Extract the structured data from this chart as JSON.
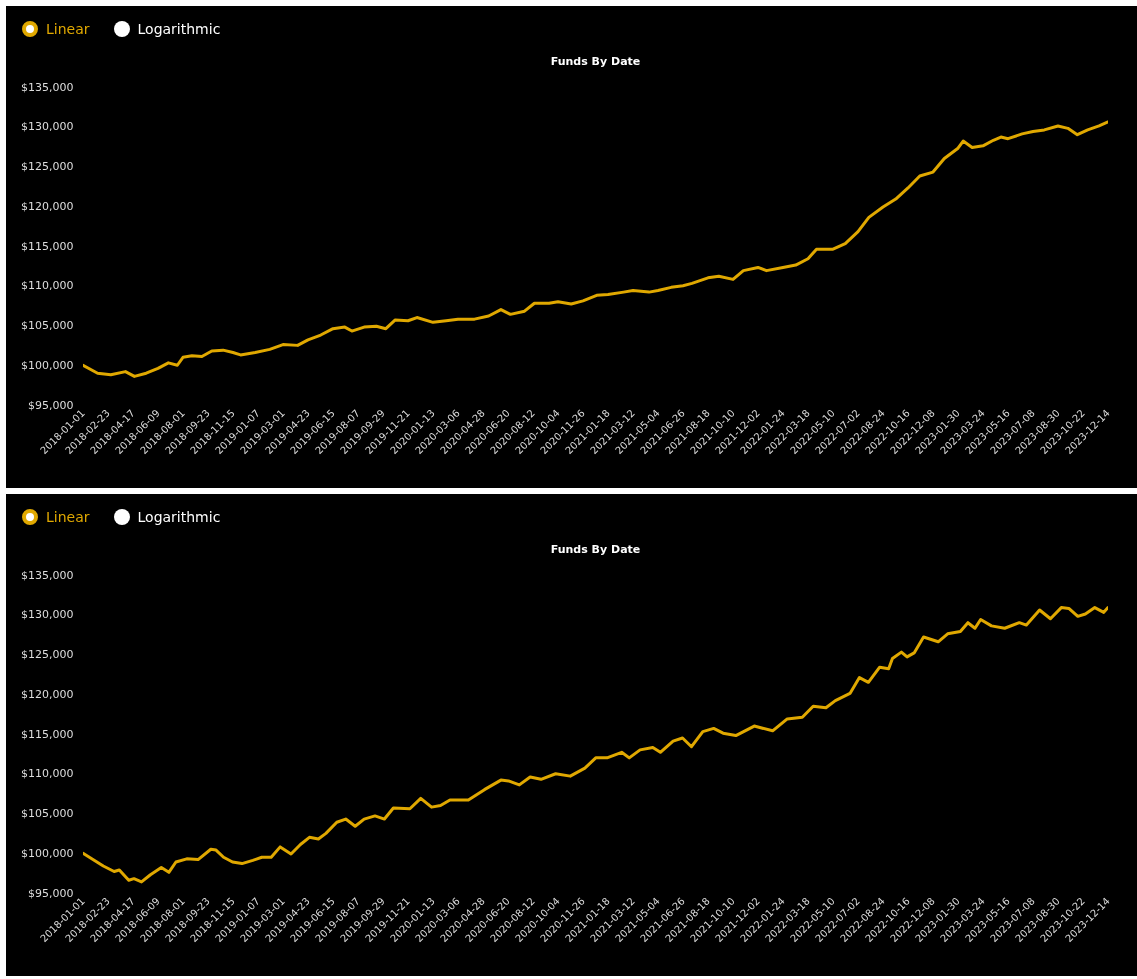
{
  "chart_data": [
    {
      "type": "line",
      "title": "Funds By Date",
      "annotations": [
        "Linear",
        "Logarithmic"
      ],
      "grid": false,
      "x": [
        "2018-01-01",
        "2018-02-01",
        "2018-03-01",
        "2018-04-01",
        "2018-04-20",
        "2018-05-15",
        "2018-06-09",
        "2018-07-01",
        "2018-07-20",
        "2018-08-01",
        "2018-08-20",
        "2018-09-10",
        "2018-10-01",
        "2018-10-25",
        "2018-11-15",
        "2018-12-01",
        "2019-01-01",
        "2019-02-01",
        "2019-03-01",
        "2019-04-01",
        "2019-04-23",
        "2019-05-20",
        "2019-06-15",
        "2019-07-10",
        "2019-07-25",
        "2019-08-20",
        "2019-09-15",
        "2019-10-05",
        "2019-10-25",
        "2019-11-21",
        "2019-12-10",
        "2020-01-13",
        "2020-02-10",
        "2020-03-06",
        "2020-04-10",
        "2020-05-10",
        "2020-06-05",
        "2020-06-25",
        "2020-07-25",
        "2020-08-15",
        "2020-09-15",
        "2020-10-04",
        "2020-11-01",
        "2020-11-26",
        "2020-12-25",
        "2021-01-18",
        "2021-02-20",
        "2021-03-12",
        "2021-04-15",
        "2021-05-04",
        "2021-06-01",
        "2021-06-26",
        "2021-07-15",
        "2021-08-18",
        "2021-09-10",
        "2021-10-10",
        "2021-11-01",
        "2021-12-02",
        "2021-12-20",
        "2022-01-24",
        "2022-02-20",
        "2022-03-18",
        "2022-04-05",
        "2022-05-10",
        "2022-06-05",
        "2022-07-02",
        "2022-07-25",
        "2022-08-24",
        "2022-09-20",
        "2022-10-16",
        "2022-11-10",
        "2022-12-08",
        "2023-01-01",
        "2023-01-30",
        "2023-02-10",
        "2023-03-01",
        "2023-03-24",
        "2023-04-15",
        "2023-05-01",
        "2023-05-16",
        "2023-06-15",
        "2023-07-08",
        "2023-08-01",
        "2023-08-30",
        "2023-09-20",
        "2023-10-10",
        "2023-11-01",
        "2023-11-25",
        "2023-12-14"
      ],
      "series": [
        {
          "color": "#e0a800",
          "values": [
            100000,
            99000,
            98800,
            99200,
            98600,
            99000,
            99600,
            100300,
            100000,
            101000,
            101200,
            101100,
            101800,
            101900,
            101600,
            101300,
            101600,
            102000,
            102600,
            102500,
            103200,
            103800,
            104600,
            104800,
            104300,
            104800,
            104900,
            104600,
            105700,
            105600,
            106000,
            105400,
            105600,
            105800,
            105800,
            106200,
            107000,
            106400,
            106800,
            107800,
            107800,
            108000,
            107700,
            108100,
            108800,
            108900,
            109200,
            109400,
            109200,
            109400,
            109800,
            110000,
            110300,
            111000,
            111200,
            110800,
            111900,
            112300,
            111900,
            112300,
            112600,
            113400,
            114600,
            114600,
            115300,
            116800,
            118600,
            119900,
            120900,
            122300,
            123800,
            124300,
            126000,
            127300,
            128200,
            127400,
            127600,
            128300,
            128700,
            128500,
            129100,
            129400,
            129600,
            130100,
            129800,
            129000,
            129600,
            130100,
            130600
          ]
        }
      ],
      "xlim": [
        "2018-01-01",
        "2023-12-14"
      ],
      "xticks": [
        "2018-01-01",
        "2018-02-23",
        "2018-04-17",
        "2018-06-09",
        "2018-08-01",
        "2018-09-23",
        "2018-11-15",
        "2019-01-07",
        "2019-03-01",
        "2019-04-23",
        "2019-06-15",
        "2019-08-07",
        "2019-09-29",
        "2019-11-21",
        "2020-01-13",
        "2020-03-06",
        "2020-04-28",
        "2020-06-20",
        "2020-08-12",
        "2020-10-04",
        "2020-11-26",
        "2021-01-18",
        "2021-03-12",
        "2021-05-04",
        "2021-06-26",
        "2021-08-18",
        "2021-10-10",
        "2021-12-02",
        "2022-01-24",
        "2022-03-18",
        "2022-05-10",
        "2022-07-02",
        "2022-08-24",
        "2022-10-16",
        "2022-12-08",
        "2023-01-30",
        "2023-03-24",
        "2023-05-16",
        "2023-07-08",
        "2023-08-30",
        "2023-10-22",
        "2023-12-14"
      ],
      "ylim": [
        95000,
        135000
      ],
      "yticks": [
        {
          "value": 95000,
          "label": "$95,000"
        },
        {
          "value": 100000,
          "label": "$100,000"
        },
        {
          "value": 105000,
          "label": "$105,000"
        },
        {
          "value": 110000,
          "label": "$110,000"
        },
        {
          "value": 115000,
          "label": "$115,000"
        },
        {
          "value": 120000,
          "label": "$120,000"
        },
        {
          "value": 125000,
          "label": "$125,000"
        },
        {
          "value": 130000,
          "label": "$130,000"
        },
        {
          "value": 135000,
          "label": "$135,000"
        }
      ]
    },
    {
      "type": "line",
      "title": "Funds By Date",
      "annotations": [
        "Linear",
        "Logarithmic"
      ],
      "grid": false,
      "x": [
        "2018-01-01",
        "2018-02-13",
        "2018-03-08",
        "2018-03-19",
        "2018-04-08",
        "2018-04-19",
        "2018-05-05",
        "2018-05-24",
        "2018-06-16",
        "2018-07-02",
        "2018-07-17",
        "2018-08-09",
        "2018-09-02",
        "2018-09-29",
        "2018-10-10",
        "2018-10-26",
        "2018-11-14",
        "2018-12-04",
        "2018-12-27",
        "2019-01-15",
        "2019-02-04",
        "2019-02-23",
        "2019-03-18",
        "2019-04-07",
        "2019-04-26",
        "2019-05-15",
        "2019-05-31",
        "2019-06-23",
        "2019-07-12",
        "2019-08-01",
        "2019-08-20",
        "2019-09-12",
        "2019-10-02",
        "2019-10-21",
        "2019-11-25",
        "2019-12-18",
        "2020-01-10",
        "2020-01-29",
        "2020-02-18",
        "2020-03-28",
        "2020-05-01",
        "2020-06-05",
        "2020-06-21",
        "2020-07-14",
        "2020-08-06",
        "2020-08-29",
        "2020-09-29",
        "2020-10-30",
        "2020-11-30",
        "2020-12-23",
        "2021-01-16",
        "2021-02-16",
        "2021-03-04",
        "2021-03-27",
        "2021-04-23",
        "2021-05-09",
        "2021-06-05",
        "2021-06-25",
        "2021-07-14",
        "2021-08-07",
        "2021-08-30",
        "2021-09-19",
        "2021-10-16",
        "2021-11-24",
        "2022-01-02",
        "2022-02-02",
        "2022-03-06",
        "2022-03-29",
        "2022-04-25",
        "2022-05-15",
        "2022-06-15",
        "2022-07-05",
        "2022-07-24",
        "2022-08-17",
        "2022-09-05",
        "2022-09-13",
        "2022-10-02",
        "2022-10-14",
        "2022-10-29",
        "2022-11-18",
        "2022-12-19",
        "2023-01-08",
        "2023-02-04",
        "2023-02-20",
        "2023-03-07",
        "2023-03-19",
        "2023-04-11",
        "2023-05-09",
        "2023-06-09",
        "2023-06-24",
        "2023-07-22",
        "2023-08-14",
        "2023-09-06",
        "2023-09-22",
        "2023-10-11",
        "2023-10-27",
        "2023-11-16",
        "2023-12-05",
        "2023-12-14"
      ],
      "series": [
        {
          "color": "#e0a800",
          "values": [
            100000,
            98400,
            97700,
            97900,
            96600,
            96800,
            96400,
            97300,
            98200,
            97600,
            98900,
            99300,
            99200,
            100500,
            100400,
            99500,
            98900,
            98700,
            99100,
            99500,
            99500,
            100800,
            99900,
            101100,
            102000,
            101800,
            102500,
            103900,
            104300,
            103400,
            104300,
            104700,
            104300,
            105700,
            105600,
            106900,
            105800,
            106000,
            106700,
            106700,
            108000,
            109200,
            109100,
            108600,
            109600,
            109300,
            110000,
            109700,
            110700,
            112000,
            112000,
            112700,
            112000,
            113000,
            113300,
            112700,
            114100,
            114500,
            113400,
            115300,
            115700,
            115100,
            114800,
            116000,
            115400,
            116900,
            117100,
            118500,
            118300,
            119200,
            120100,
            122100,
            121500,
            123400,
            123200,
            124500,
            125300,
            124700,
            125200,
            127200,
            126600,
            127600,
            127900,
            129000,
            128300,
            129400,
            128600,
            128300,
            129000,
            128700,
            130600,
            129500,
            130900,
            130800,
            129800,
            130100,
            130900,
            130300,
            130900
          ]
        }
      ],
      "xlim": [
        "2018-01-01",
        "2023-12-14"
      ],
      "xticks": [
        "2018-01-01",
        "2018-02-23",
        "2018-04-17",
        "2018-06-09",
        "2018-08-01",
        "2018-09-23",
        "2018-11-15",
        "2019-01-07",
        "2019-03-01",
        "2019-04-23",
        "2019-06-15",
        "2019-08-07",
        "2019-09-29",
        "2019-11-21",
        "2020-01-13",
        "2020-03-06",
        "2020-04-28",
        "2020-06-20",
        "2020-08-12",
        "2020-10-04",
        "2020-11-26",
        "2021-01-18",
        "2021-03-12",
        "2021-05-04",
        "2021-06-26",
        "2021-08-18",
        "2021-10-10",
        "2021-12-02",
        "2022-01-24",
        "2022-03-18",
        "2022-05-10",
        "2022-07-02",
        "2022-08-24",
        "2022-10-16",
        "2022-12-08",
        "2023-01-30",
        "2023-03-24",
        "2023-05-16",
        "2023-07-08",
        "2023-08-30",
        "2023-10-22",
        "2023-12-14"
      ],
      "ylim": [
        95000,
        135000
      ],
      "yticks": [
        {
          "value": 95000,
          "label": "$95,000"
        },
        {
          "value": 100000,
          "label": "$100,000"
        },
        {
          "value": 105000,
          "label": "$105,000"
        },
        {
          "value": 110000,
          "label": "$110,000"
        },
        {
          "value": 115000,
          "label": "$115,000"
        },
        {
          "value": 120000,
          "label": "$120,000"
        },
        {
          "value": 125000,
          "label": "$125,000"
        },
        {
          "value": 130000,
          "label": "$130,000"
        },
        {
          "value": 135000,
          "label": "$135,000"
        }
      ]
    }
  ]
}
